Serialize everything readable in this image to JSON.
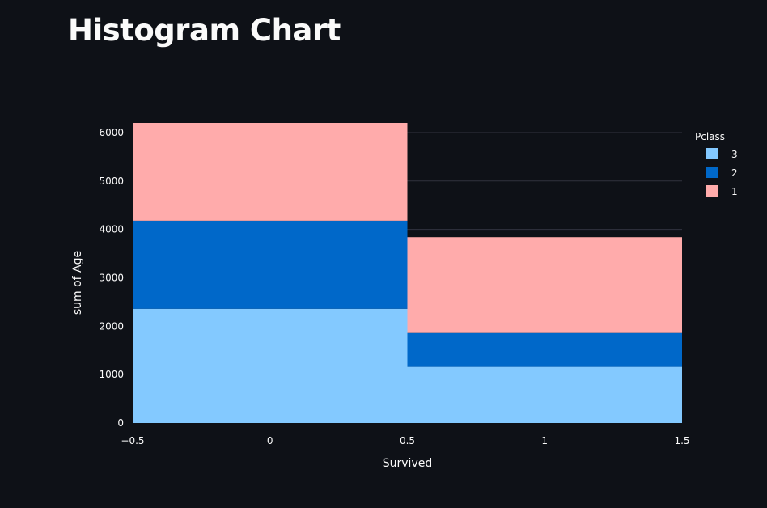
{
  "page": {
    "title": "Histogram Chart"
  },
  "chart_data": {
    "type": "bar",
    "stacked": true,
    "x_bins": [
      {
        "x0": -0.5,
        "x1": 0.5
      },
      {
        "x0": 0.5,
        "x1": 1.5
      }
    ],
    "series": [
      {
        "name": "3",
        "color": "#83c9ff",
        "values": [
          2360,
          1160
        ]
      },
      {
        "name": "2",
        "color": "#0068c9",
        "values": [
          1820,
          700
        ]
      },
      {
        "name": "1",
        "color": "#ffabab",
        "values": [
          2020,
          1980
        ]
      }
    ],
    "xlabel": "Survived",
    "ylabel": "sum of Age",
    "xlim": [
      -0.5,
      1.5
    ],
    "ylim": [
      0,
      6200
    ],
    "xticks": [
      -0.5,
      0,
      0.5,
      1,
      1.5
    ],
    "xtick_labels": [
      "−0.5",
      "0",
      "0.5",
      "1",
      "1.5"
    ],
    "yticks": [
      0,
      1000,
      2000,
      3000,
      4000,
      5000,
      6000
    ],
    "ytick_labels": [
      "0",
      "1000",
      "2000",
      "3000",
      "4000",
      "5000",
      "6000"
    ],
    "legend_title": "Pclass",
    "legend_position": "top-right",
    "grid": true,
    "grid_color": "#31333f",
    "background_color": "#0e1117",
    "text_color": "#fafafa"
  }
}
